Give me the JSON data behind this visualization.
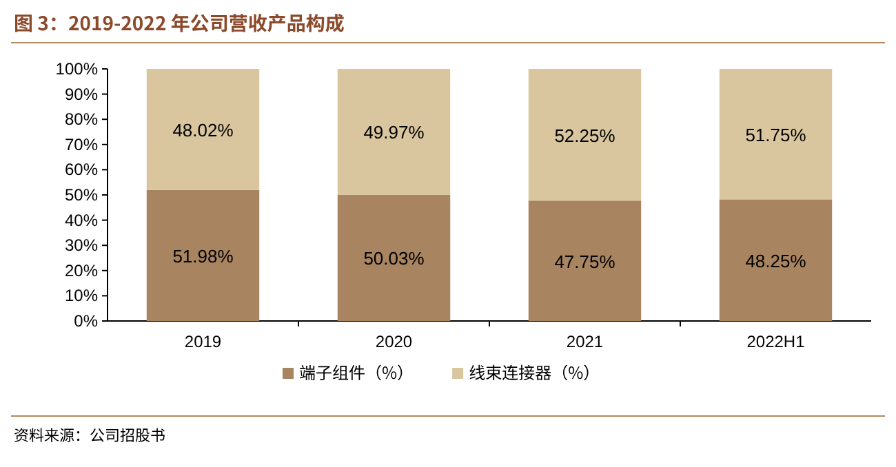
{
  "chart_data": {
    "type": "bar",
    "stacked": true,
    "title": "图 3：2019-2022 年公司营收产品构成",
    "categories": [
      "2019",
      "2020",
      "2021",
      "2022H1"
    ],
    "series": [
      {
        "name": "端子组件（%）",
        "color": "#a88460",
        "values": [
          51.98,
          50.03,
          47.75,
          48.25
        ],
        "value_labels": [
          "51.98%",
          "50.03%",
          "47.75%",
          "48.25%"
        ]
      },
      {
        "name": "线束连接器（%）",
        "color": "#d9c69f",
        "values": [
          48.02,
          49.97,
          52.25,
          51.75
        ],
        "value_labels": [
          "48.02%",
          "49.97%",
          "52.25%",
          "51.75%"
        ]
      }
    ],
    "ylim": [
      0,
      100
    ],
    "yticks": [
      {
        "value": 0,
        "label": "0%"
      },
      {
        "value": 10,
        "label": "10%"
      },
      {
        "value": 20,
        "label": "20%"
      },
      {
        "value": 30,
        "label": "30%"
      },
      {
        "value": 40,
        "label": "40%"
      },
      {
        "value": 50,
        "label": "50%"
      },
      {
        "value": 60,
        "label": "60%"
      },
      {
        "value": 70,
        "label": "70%"
      },
      {
        "value": 80,
        "label": "80%"
      },
      {
        "value": 90,
        "label": "90%"
      },
      {
        "value": 100,
        "label": "100%"
      }
    ],
    "legend": "bottom",
    "grid": false,
    "annotations": [
      "资料来源：公司招股书"
    ]
  }
}
